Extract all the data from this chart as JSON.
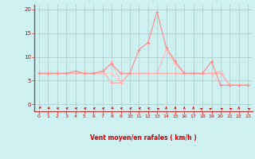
{
  "background_color": "#cff0f0",
  "grid_color": "#b0c8c8",
  "line_color1": "#ff8888",
  "line_color2": "#ffaaaa",
  "line_color3": "#ffbbbb",
  "line_color4": "#ffcccc",
  "spine_color": "#cc3333",
  "tick_color": "#cc0000",
  "xlabel": "Vent moyen/en rafales ( km/h )",
  "xlabel_color": "#cc0000",
  "left_spine_color": "#666666",
  "ylim": [
    -1.5,
    21
  ],
  "xlim": [
    -0.5,
    23.5
  ],
  "yticks": [
    0,
    5,
    10,
    15,
    20
  ],
  "xticks": [
    0,
    1,
    2,
    3,
    4,
    5,
    6,
    7,
    8,
    9,
    10,
    11,
    12,
    13,
    14,
    15,
    16,
    17,
    18,
    19,
    20,
    21,
    22,
    23
  ],
  "series1_x": [
    0,
    1,
    2,
    3,
    4,
    5,
    6,
    7,
    8,
    9,
    10,
    11,
    12,
    13,
    14,
    15,
    16,
    17,
    18,
    19,
    20,
    21,
    22,
    23
  ],
  "series1_y": [
    6.5,
    6.5,
    6.5,
    6.5,
    7.0,
    6.5,
    6.5,
    7.0,
    8.5,
    6.5,
    6.5,
    11.5,
    13.0,
    19.5,
    12.0,
    9.0,
    6.5,
    6.5,
    6.5,
    9.0,
    4.0,
    4.0,
    4.0,
    4.0
  ],
  "series2_x": [
    0,
    1,
    2,
    3,
    4,
    5,
    6,
    7,
    8,
    9,
    10,
    11,
    12,
    13,
    14,
    15,
    16,
    17,
    18,
    19,
    20,
    21,
    22,
    23
  ],
  "series2_y": [
    6.5,
    6.5,
    6.5,
    6.5,
    6.5,
    6.5,
    6.5,
    7.0,
    4.5,
    4.5,
    6.5,
    6.5,
    6.5,
    6.5,
    6.5,
    6.5,
    6.5,
    6.5,
    6.5,
    6.5,
    6.5,
    4.0,
    4.0,
    4.0
  ],
  "series3_x": [
    0,
    1,
    2,
    3,
    4,
    5,
    6,
    7,
    8,
    9,
    10,
    11,
    12,
    13,
    14,
    15,
    16,
    17,
    18,
    19,
    20,
    21,
    22,
    23
  ],
  "series3_y": [
    6.5,
    6.5,
    6.5,
    6.5,
    6.5,
    6.5,
    6.5,
    6.5,
    9.0,
    4.5,
    6.5,
    6.5,
    6.5,
    6.5,
    11.5,
    8.5,
    6.5,
    6.5,
    6.5,
    6.5,
    7.0,
    4.0,
    4.0,
    4.0
  ],
  "series4_x": [
    0,
    1,
    2,
    3,
    4,
    5,
    6,
    7,
    8,
    9,
    10,
    11,
    12,
    13,
    14,
    15,
    16,
    17,
    18,
    19,
    20,
    21,
    22,
    23
  ],
  "series4_y": [
    6.5,
    6.5,
    6.5,
    6.5,
    6.5,
    6.5,
    6.5,
    6.5,
    6.5,
    4.5,
    6.5,
    6.5,
    6.5,
    6.5,
    6.5,
    6.5,
    6.5,
    6.5,
    6.5,
    6.5,
    4.0,
    4.0,
    4.0,
    4.0
  ],
  "arrow_angles_deg": [
    225,
    200,
    155,
    160,
    155,
    155,
    155,
    155,
    200,
    155,
    155,
    155,
    155,
    135,
    90,
    90,
    90,
    90,
    45,
    45,
    135,
    135,
    90,
    135
  ],
  "markersize": 2.5
}
